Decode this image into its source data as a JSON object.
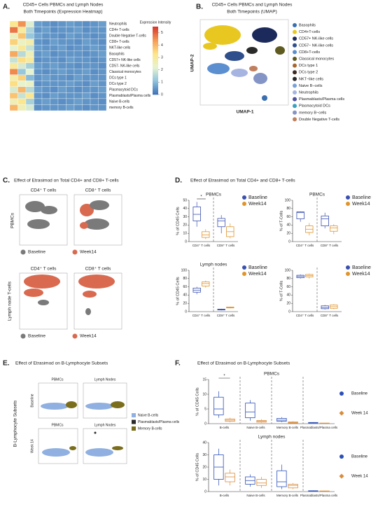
{
  "panels": {
    "A": {
      "label": "A.",
      "title": [
        "CD45+ Cells PBMCs and Lymph Nodes",
        "Both Timepoints (Expression Heatmap)"
      ]
    },
    "B": {
      "label": "B.",
      "title": [
        "CD45+ Cells PBMCs and Lymph Nodes",
        "Both Timepoints (UMAP)"
      ],
      "xlabel": "UMAP-1",
      "ylabel": "UMAP-2",
      "legend": [
        {
          "name": "Basophils",
          "color": "#3a6fb0"
        },
        {
          "name": "CD4+T-cells",
          "color": "#e8c820"
        },
        {
          "name": "CD57+ NK-like cells",
          "color": "#1b2a5a"
        },
        {
          "name": "CD57− NK-like cells",
          "color": "#2e4f8c"
        },
        {
          "name": "CD8+T-cells",
          "color": "#5b8fd0"
        },
        {
          "name": "Classical monocytes",
          "color": "#5e5a20"
        },
        {
          "name": "DCs type 1",
          "color": "#a8672c"
        },
        {
          "name": "DCs type 2",
          "color": "#3d2a20"
        },
        {
          "name": "NKT−like cells",
          "color": "#2a2a2a"
        },
        {
          "name": "Naive B−cells",
          "color": "#7aa0d8"
        },
        {
          "name": "Neutrophils",
          "color": "#a6b4e2"
        },
        {
          "name": "Plasmablasts/Plasma cells",
          "color": "#5050a0"
        },
        {
          "name": "Plasmacytoid DCs",
          "color": "#3aa0c0"
        },
        {
          "name": "memory B−cells",
          "color": "#8494c4"
        },
        {
          "name": "Double Negative T-cells",
          "color": "#c08060"
        }
      ]
    },
    "C": {
      "label": "C.",
      "title": "Effect of Etrasimod on Total CD4+ and CD8+ T-cells",
      "cols": [
        "CD4⁺ T cells",
        "CD8⁺ T cells"
      ],
      "rows": [
        "PBMCs",
        "Lymph node T-cells"
      ],
      "legend": [
        {
          "name": "Baseline",
          "color": "#7a7a7a"
        },
        {
          "name": "Week14",
          "color": "#d96a50"
        }
      ]
    },
    "D": {
      "label": "D.",
      "title": "Effect of Etrasimod on Total CD4+ and CD8+ T-cells"
    },
    "E": {
      "label": "E.",
      "title": "Effect of Etrasimod on B-Lymphocyte Subsets",
      "cols": [
        "PBMCs",
        "Lymph Nodes"
      ],
      "rows": [
        "Baseline",
        "Week 14"
      ],
      "side": "B-Lymphocyte Subsets",
      "legend": [
        {
          "name": "Naive B-cells",
          "color": "#8fb0e0"
        },
        {
          "name": "Plasmablasts/Plasma cells",
          "color": "#2a2a2a"
        },
        {
          "name": "Memory B-cells",
          "color": "#7a6e1c"
        }
      ]
    },
    "F": {
      "label": "F.",
      "title": "Effect of Etrasimod on B-Lymphocyte Subsets"
    }
  },
  "chart_data": [
    {
      "type": "heatmap",
      "zlabel": "Expression Intensity",
      "rows": [
        "Neutrophils",
        "CD4+ T-cells",
        "Double Negative T-cells",
        "CD8+ T-cells",
        "NKT-like cells",
        "Basophils",
        "CD57+ NK-like cells",
        "CD57- NK-like cells",
        "Classical monocytes",
        "DCs type 1",
        "DCs type 2",
        "Plasmacytoid DCs",
        "Plasmablasts/Plasma cells",
        "Naive B-cells",
        "memory B-cells"
      ],
      "colors": [
        "#3b6fb6",
        "#8fc3dd",
        "#e6f3d0",
        "#fde68a",
        "#f59b56",
        "#d7362c"
      ],
      "zlim": [
        0,
        5.5
      ],
      "zticks": [
        0,
        1,
        2,
        3,
        4,
        5
      ],
      "values": [
        [
          3.2,
          4.5,
          2.1,
          0.6,
          0.5,
          0.4,
          0.5,
          0.6,
          0.5,
          0.4,
          0.5,
          0.6
        ],
        [
          4.8,
          3.0,
          1.5,
          0.5,
          0.6,
          0.4,
          0.5,
          0.5,
          0.6,
          0.4,
          0.5,
          0.5
        ],
        [
          2.5,
          3.8,
          1.2,
          0.7,
          0.5,
          0.5,
          0.4,
          0.6,
          0.5,
          0.5,
          0.4,
          0.5
        ],
        [
          3.6,
          2.4,
          2.8,
          0.5,
          0.4,
          0.6,
          0.5,
          0.5,
          0.4,
          0.6,
          0.5,
          0.4
        ],
        [
          2.2,
          3.1,
          1.8,
          0.6,
          0.5,
          0.5,
          0.6,
          0.4,
          0.5,
          0.5,
          0.6,
          0.5
        ],
        [
          4.2,
          1.6,
          2.6,
          0.5,
          0.6,
          0.4,
          0.5,
          0.5,
          0.5,
          0.4,
          0.5,
          0.6
        ],
        [
          1.8,
          3.4,
          3.0,
          0.4,
          0.5,
          0.5,
          0.4,
          0.6,
          0.5,
          0.5,
          0.4,
          0.5
        ],
        [
          3.0,
          2.0,
          1.4,
          0.6,
          0.5,
          0.6,
          0.5,
          0.5,
          0.4,
          0.5,
          0.5,
          0.4
        ],
        [
          4.6,
          1.2,
          2.2,
          0.5,
          0.4,
          0.5,
          0.6,
          0.5,
          0.5,
          0.6,
          0.4,
          0.5
        ],
        [
          2.8,
          3.6,
          1.0,
          0.5,
          0.6,
          0.5,
          0.5,
          0.4,
          0.6,
          0.5,
          0.5,
          0.5
        ],
        [
          3.4,
          2.2,
          2.4,
          0.4,
          0.5,
          0.5,
          0.5,
          0.6,
          0.5,
          0.4,
          0.6,
          0.5
        ],
        [
          2.0,
          4.0,
          1.6,
          0.6,
          0.5,
          0.4,
          0.6,
          0.5,
          0.4,
          0.5,
          0.5,
          0.6
        ],
        [
          3.8,
          1.8,
          3.2,
          0.5,
          0.4,
          0.6,
          0.5,
          0.5,
          0.5,
          0.6,
          0.4,
          0.5
        ],
        [
          2.6,
          3.2,
          1.4,
          0.5,
          0.6,
          0.5,
          0.4,
          0.5,
          0.6,
          0.5,
          0.5,
          0.4
        ],
        [
          4.0,
          2.6,
          2.0,
          0.4,
          0.5,
          0.5,
          0.5,
          0.6,
          0.5,
          0.4,
          0.5,
          0.5
        ]
      ]
    },
    {
      "type": "box",
      "title": "PBMCs",
      "ylabel": "% of CD45 Cells",
      "categories": [
        "CD4⁺ T cells",
        "CD8⁺ T cells"
      ],
      "ylim": [
        0,
        50
      ],
      "yticks": [
        0,
        10,
        20,
        30,
        40,
        50
      ],
      "annotation": "*",
      "series": [
        {
          "name": "Baseline",
          "color": "#3a50b0",
          "marker": "circle",
          "min": [
            18,
            10
          ],
          "q1": [
            25,
            18
          ],
          "median": [
            33,
            25
          ],
          "q3": [
            42,
            28
          ],
          "max": [
            48,
            32
          ]
        },
        {
          "name": "Week14",
          "color": "#e0942a",
          "marker": "circle",
          "min": [
            3,
            4
          ],
          "q1": [
            5,
            6
          ],
          "median": [
            8,
            12
          ],
          "q3": [
            12,
            18
          ],
          "max": [
            15,
            22
          ]
        }
      ]
    },
    {
      "type": "box",
      "title": "PBMCs",
      "ylabel": "% of T-Cells",
      "categories": [
        "CD4⁺ T cells",
        "CD8⁺ T cells"
      ],
      "ylim": [
        0,
        100
      ],
      "yticks": [
        0,
        20,
        40,
        60,
        80,
        100
      ],
      "series": [
        {
          "name": "Baseline",
          "color": "#3a50b0",
          "marker": "circle",
          "min": [
            48,
            32
          ],
          "q1": [
            55,
            38
          ],
          "median": [
            70,
            55
          ],
          "q3": [
            72,
            62
          ],
          "max": [
            73,
            70
          ]
        },
        {
          "name": "Week14",
          "color": "#e0942a",
          "marker": "circle",
          "min": [
            15,
            18
          ],
          "q1": [
            22,
            25
          ],
          "median": [
            30,
            33
          ],
          "q3": [
            38,
            38
          ],
          "max": [
            45,
            42
          ]
        }
      ]
    },
    {
      "type": "box",
      "title": "Lymph nodes",
      "ylabel": "% of CD45 Cells",
      "categories": [
        "CD4⁺ T cells",
        "CD8⁺ T cells"
      ],
      "ylim": [
        0,
        100
      ],
      "yticks": [
        0,
        20,
        40,
        60,
        80,
        100
      ],
      "series": [
        {
          "name": "Baseline",
          "color": "#3a50b0",
          "marker": "circle",
          "min": [
            42,
            3
          ],
          "q1": [
            47,
            4
          ],
          "median": [
            52,
            5
          ],
          "q3": [
            57,
            6
          ],
          "max": [
            60,
            7
          ]
        },
        {
          "name": "Week14",
          "color": "#e0942a",
          "marker": "circle",
          "min": [
            58,
            8
          ],
          "q1": [
            62,
            9
          ],
          "median": [
            68,
            10
          ],
          "q3": [
            72,
            11
          ],
          "max": [
            75,
            12
          ]
        }
      ]
    },
    {
      "type": "box",
      "title": "",
      "ylabel": "% of T-Cells",
      "categories": [
        "CD4⁺ T cells",
        "CD8⁺ T cells"
      ],
      "ylim": [
        0,
        100
      ],
      "yticks": [
        0,
        20,
        40,
        60,
        80,
        100
      ],
      "series": [
        {
          "name": "Baseline",
          "color": "#3a50b0",
          "marker": "circle",
          "min": [
            80,
            5
          ],
          "q1": [
            82,
            7
          ],
          "median": [
            85,
            10
          ],
          "q3": [
            88,
            14
          ],
          "max": [
            90,
            16
          ]
        },
        {
          "name": "Week14",
          "color": "#e0942a",
          "marker": "circle",
          "min": [
            80,
            6
          ],
          "q1": [
            84,
            8
          ],
          "median": [
            87,
            12
          ],
          "q3": [
            90,
            16
          ],
          "max": [
            92,
            18
          ]
        }
      ]
    },
    {
      "type": "box",
      "title": "PBMCs",
      "ylabel": "% of CD45 Cells",
      "categories": [
        "B-cells",
        "Naive B-cells",
        "Memory B-cells",
        "Plasmablasts/Plasma cells"
      ],
      "ylim": [
        0,
        15
      ],
      "yticks": [
        0,
        5,
        10,
        15
      ],
      "annotation": "*",
      "series": [
        {
          "name": "Baseline",
          "color": "#2a4fb8",
          "marker": "circle",
          "min": [
            2,
            1,
            0.5,
            0.1
          ],
          "q1": [
            3,
            2,
            0.8,
            0.2
          ],
          "median": [
            5,
            4,
            1.2,
            0.3
          ],
          "q3": [
            9,
            7,
            1.8,
            0.4
          ],
          "max": [
            11,
            8,
            2.2,
            0.5
          ]
        },
        {
          "name": "Week 14",
          "color": "#d98c3a",
          "marker": "diamond",
          "min": [
            0.5,
            0.3,
            0.1,
            0.05
          ],
          "q1": [
            0.8,
            0.5,
            0.2,
            0.1
          ],
          "median": [
            1.2,
            0.8,
            0.4,
            0.15
          ],
          "q3": [
            1.6,
            1.1,
            0.6,
            0.2
          ],
          "max": [
            2,
            1.5,
            0.8,
            0.25
          ]
        }
      ]
    },
    {
      "type": "box",
      "title": "Lymph nodes",
      "ylabel": "% of CD45 Cells",
      "categories": [
        "B-cells",
        "Naive B-cells",
        "Memory B-cells",
        "Plasmablasts/Plasma cells"
      ],
      "ylim": [
        0,
        40
      ],
      "yticks": [
        0,
        10,
        20,
        30,
        40
      ],
      "series": [
        {
          "name": "Baseline",
          "color": "#2a4fb8",
          "marker": "circle",
          "min": [
            5,
            4,
            2,
            0.2
          ],
          "q1": [
            10,
            6,
            4,
            0.3
          ],
          "median": [
            20,
            9,
            8,
            0.5
          ],
          "q3": [
            30,
            12,
            17,
            0.7
          ],
          "max": [
            35,
            14,
            22,
            0.9
          ]
        },
        {
          "name": "Week 14",
          "color": "#d98c3a",
          "marker": "diamond",
          "min": [
            5,
            3,
            2,
            0.2
          ],
          "q1": [
            8,
            5,
            3,
            0.3
          ],
          "median": [
            12,
            7,
            5,
            0.4
          ],
          "q3": [
            15,
            10,
            6,
            0.5
          ],
          "max": [
            18,
            12,
            7,
            0.6
          ]
        }
      ]
    }
  ]
}
